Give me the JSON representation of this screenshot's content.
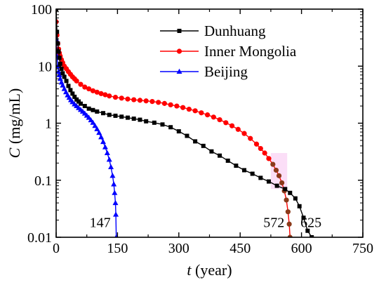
{
  "chart_data": {
    "type": "line",
    "x_axis": {
      "label_var": "t",
      "label_unit": " (year)",
      "range": [
        0,
        750
      ],
      "ticks": [
        0,
        150,
        300,
        450,
        600,
        750
      ],
      "tick_labels": [
        "0",
        "150",
        "300",
        "450",
        "600",
        "750"
      ]
    },
    "y_axis": {
      "label_var": "C",
      "label_unit": " (mg/mL)",
      "scale": "log",
      "range": [
        0.01,
        100
      ],
      "ticks": [
        0.01,
        0.1,
        1,
        10,
        100
      ],
      "tick_labels": [
        "0.01",
        "0.1",
        "1",
        "10",
        "100"
      ]
    },
    "grid": false,
    "legend_position": "top-right",
    "series": [
      {
        "name": "Dunhuang",
        "color": "#000000",
        "marker": "square",
        "points": [
          [
            0,
            100
          ],
          [
            2,
            40
          ],
          [
            4,
            25
          ],
          [
            6,
            18
          ],
          [
            8,
            14
          ],
          [
            10,
            11
          ],
          [
            13,
            9
          ],
          [
            16,
            7.5
          ],
          [
            20,
            6.5
          ],
          [
            25,
            5.5
          ],
          [
            30,
            4.5
          ],
          [
            35,
            3.8
          ],
          [
            40,
            3.3
          ],
          [
            45,
            2.9
          ],
          [
            50,
            2.6
          ],
          [
            55,
            2.4
          ],
          [
            60,
            2.2
          ],
          [
            70,
            2.0
          ],
          [
            80,
            1.8
          ],
          [
            90,
            1.7
          ],
          [
            100,
            1.6
          ],
          [
            115,
            1.5
          ],
          [
            130,
            1.4
          ],
          [
            145,
            1.35
          ],
          [
            160,
            1.3
          ],
          [
            175,
            1.25
          ],
          [
            190,
            1.2
          ],
          [
            205,
            1.15
          ],
          [
            220,
            1.08
          ],
          [
            240,
            1.02
          ],
          [
            260,
            0.95
          ],
          [
            280,
            0.85
          ],
          [
            300,
            0.72
          ],
          [
            320,
            0.6
          ],
          [
            340,
            0.48
          ],
          [
            360,
            0.4
          ],
          [
            380,
            0.32
          ],
          [
            400,
            0.27
          ],
          [
            420,
            0.22
          ],
          [
            440,
            0.18
          ],
          [
            460,
            0.15
          ],
          [
            480,
            0.13
          ],
          [
            500,
            0.11
          ],
          [
            520,
            0.095
          ],
          [
            540,
            0.08
          ],
          [
            560,
            0.07
          ],
          [
            572,
            0.06
          ],
          [
            585,
            0.048
          ],
          [
            595,
            0.035
          ],
          [
            605,
            0.022
          ],
          [
            615,
            0.013
          ],
          [
            625,
            0.01
          ]
        ]
      },
      {
        "name": "Inner Mongolia",
        "color": "#ff0000",
        "marker": "circle",
        "points": [
          [
            0,
            60
          ],
          [
            2,
            35
          ],
          [
            4,
            25
          ],
          [
            6,
            20
          ],
          [
            8,
            17
          ],
          [
            10,
            15
          ],
          [
            13,
            13
          ],
          [
            16,
            11.5
          ],
          [
            20,
            10
          ],
          [
            25,
            9
          ],
          [
            30,
            8
          ],
          [
            35,
            7.2
          ],
          [
            40,
            6.5
          ],
          [
            45,
            6.0
          ],
          [
            50,
            5.5
          ],
          [
            60,
            4.8
          ],
          [
            70,
            4.3
          ],
          [
            80,
            4.0
          ],
          [
            90,
            3.7
          ],
          [
            100,
            3.5
          ],
          [
            110,
            3.3
          ],
          [
            120,
            3.15
          ],
          [
            130,
            3.0
          ],
          [
            145,
            2.85
          ],
          [
            160,
            2.75
          ],
          [
            175,
            2.65
          ],
          [
            190,
            2.58
          ],
          [
            205,
            2.52
          ],
          [
            220,
            2.46
          ],
          [
            235,
            2.4
          ],
          [
            250,
            2.32
          ],
          [
            265,
            2.22
          ],
          [
            280,
            2.1
          ],
          [
            295,
            2.0
          ],
          [
            310,
            1.88
          ],
          [
            325,
            1.76
          ],
          [
            340,
            1.65
          ],
          [
            355,
            1.52
          ],
          [
            370,
            1.4
          ],
          [
            385,
            1.28
          ],
          [
            400,
            1.15
          ],
          [
            415,
            1.02
          ],
          [
            430,
            0.9
          ],
          [
            445,
            0.78
          ],
          [
            460,
            0.66
          ],
          [
            475,
            0.54
          ],
          [
            490,
            0.43
          ],
          [
            500,
            0.36
          ],
          [
            510,
            0.3
          ],
          [
            520,
            0.24
          ],
          [
            530,
            0.19
          ],
          [
            538,
            0.15
          ],
          [
            545,
            0.12
          ],
          [
            552,
            0.09
          ],
          [
            558,
            0.065
          ],
          [
            563,
            0.045
          ],
          [
            567,
            0.028
          ],
          [
            570,
            0.017
          ],
          [
            572,
            0.01
          ]
        ]
      },
      {
        "name": "Beijing",
        "color": "#0000ff",
        "marker": "triangle",
        "points": [
          [
            0,
            30
          ],
          [
            2,
            15
          ],
          [
            4,
            10
          ],
          [
            6,
            8
          ],
          [
            8,
            7
          ],
          [
            10,
            6
          ],
          [
            13,
            5.2
          ],
          [
            16,
            4.6
          ],
          [
            20,
            4.0
          ],
          [
            24,
            3.5
          ],
          [
            28,
            3.1
          ],
          [
            32,
            2.8
          ],
          [
            36,
            2.55
          ],
          [
            40,
            2.35
          ],
          [
            45,
            2.15
          ],
          [
            50,
            2.0
          ],
          [
            55,
            1.85
          ],
          [
            60,
            1.72
          ],
          [
            65,
            1.6
          ],
          [
            70,
            1.48
          ],
          [
            75,
            1.36
          ],
          [
            80,
            1.25
          ],
          [
            85,
            1.13
          ],
          [
            90,
            1.02
          ],
          [
            95,
            0.9
          ],
          [
            100,
            0.79
          ],
          [
            105,
            0.68
          ],
          [
            110,
            0.57
          ],
          [
            115,
            0.47
          ],
          [
            120,
            0.38
          ],
          [
            125,
            0.3
          ],
          [
            130,
            0.23
          ],
          [
            134,
            0.17
          ],
          [
            138,
            0.12
          ],
          [
            141,
            0.085
          ],
          [
            143,
            0.06
          ],
          [
            145,
            0.04
          ],
          [
            146,
            0.025
          ],
          [
            147,
            0.01
          ]
        ]
      }
    ],
    "annotations": [
      {
        "text": "147",
        "x": 147,
        "y": 0.018
      },
      {
        "text": "572",
        "x": 572,
        "y": 0.018
      },
      {
        "text": "625",
        "x": 625,
        "y": 0.018
      }
    ]
  }
}
